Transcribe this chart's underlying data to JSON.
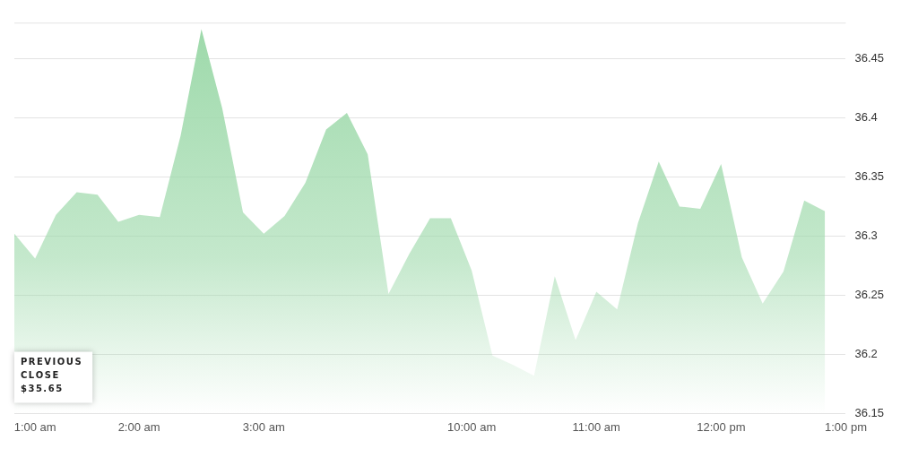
{
  "chart_data": {
    "type": "area",
    "categories": [
      null,
      "1:00 am",
      null,
      null,
      null,
      null,
      "2:00 am",
      null,
      null,
      null,
      null,
      null,
      "3:00 am",
      null,
      null,
      null,
      null,
      null,
      null,
      null,
      null,
      null,
      "10:00 am",
      null,
      null,
      null,
      null,
      null,
      "11:00 am",
      null,
      null,
      null,
      null,
      null,
      "12:00 pm",
      null,
      null,
      null,
      null,
      null,
      "1:00 pm"
    ],
    "series": [
      {
        "color": "#9dd9aa",
        "values": [
          36.302,
          36.281,
          36.318,
          36.337,
          36.335,
          36.312,
          36.318,
          36.316,
          36.385,
          36.475,
          36.408,
          36.32,
          36.302,
          36.317,
          36.345,
          36.39,
          36.404,
          36.369,
          36.251,
          36.285,
          36.315,
          36.315,
          36.271,
          36.199,
          36.191,
          36.182,
          36.266,
          36.212,
          36.253,
          36.238,
          36.311,
          36.363,
          36.325,
          36.323,
          36.361,
          36.282,
          36.243,
          36.27,
          36.33,
          36.321,
          null
        ]
      }
    ],
    "ylim": [
      36.15,
      36.48
    ],
    "yticks": [
      36.15,
      36.2,
      36.25,
      36.3,
      36.35,
      36.4,
      36.45
    ],
    "grid": "y",
    "legend": false,
    "marker": "none",
    "annotations": [
      "PREVIOUS CLOSE $35.65"
    ]
  }
}
